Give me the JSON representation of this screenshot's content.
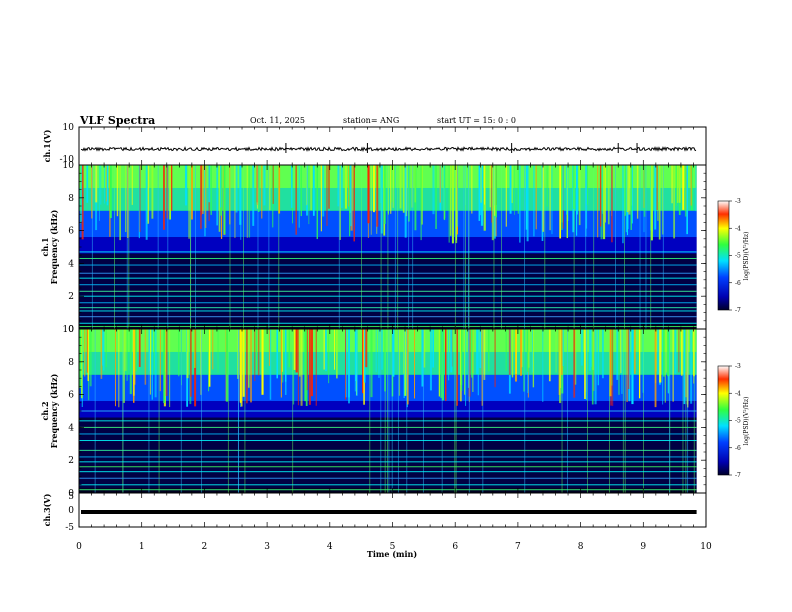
{
  "header": {
    "title": "VLF Spectra",
    "date": "Oct. 11, 2025",
    "station": "station= ANG",
    "start": "start  UT =   15: 0  : 0"
  },
  "chart_data": [
    {
      "type": "line",
      "panel": "ch1-waveform",
      "ylabel": "ch.1(V)",
      "ylim": [
        -10,
        10
      ],
      "y_tick_labels": [
        "10",
        "-10"
      ],
      "baseline_value": 0,
      "xlim": [
        0,
        10
      ]
    },
    {
      "type": "heatmap",
      "panel": "ch1-spectrogram",
      "ylabel_line1": "ch.1",
      "ylabel_line2": "Frequency  (kHz)",
      "ylim": [
        0,
        10
      ],
      "y_tick_labels": [
        "0",
        "2",
        "4",
        "6",
        "8",
        "10"
      ],
      "data_end_min": 9.85,
      "colorbar": {
        "label": "log(PSD)(V²/Hz)",
        "range": [
          -7,
          -3
        ],
        "ticks": [
          "-3",
          "-4",
          "-5",
          "-6",
          "-7"
        ]
      }
    },
    {
      "type": "heatmap",
      "panel": "ch2-spectrogram",
      "ylabel_line1": "ch.2",
      "ylabel_line2": "Frequency  (kHz)",
      "ylim": [
        0,
        10
      ],
      "y_tick_labels": [
        "0",
        "2",
        "4",
        "6",
        "8",
        "10"
      ],
      "data_end_min": 9.85,
      "colorbar": {
        "label": "log(PSD)(V²/Hz)",
        "range": [
          -7,
          -3
        ],
        "ticks": [
          "-3",
          "-4",
          "-5",
          "-6",
          "-7"
        ]
      }
    },
    {
      "type": "line",
      "panel": "ch3-waveform",
      "ylabel": "ch.3(V)",
      "ylim": [
        -5,
        5
      ],
      "y_tick_labels": [
        "5",
        "0",
        "-5"
      ],
      "baseline_value": 0,
      "xlim": [
        0,
        10
      ],
      "xlabel": "Time  (min)",
      "x_tick_labels": [
        "0",
        "1",
        "2",
        "3",
        "4",
        "5",
        "6",
        "7",
        "8",
        "9",
        "10"
      ]
    }
  ],
  "colors": {
    "dark": "#000033",
    "deep": "#0000aa",
    "blue": "#1030ff",
    "cyan": "#00e0ff",
    "green": "#30ff50",
    "yellow": "#ffff00",
    "red": "#ff0000"
  }
}
